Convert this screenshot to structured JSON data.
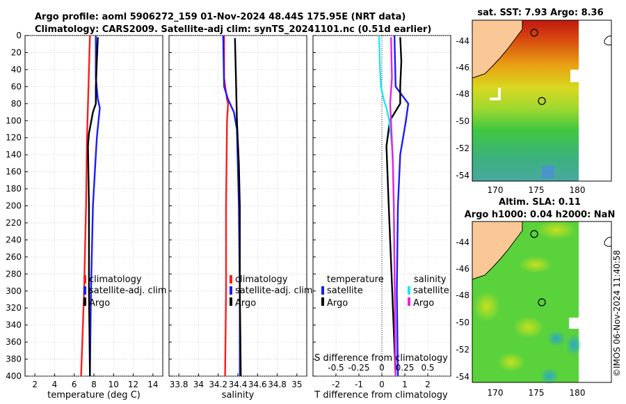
{
  "header": {
    "title_line1": "Argo profile: aoml 5906272_159 01-Nov-2024 48.44S 175.95E (NRT data)",
    "title_line2": "Climatology: CARS2009. Satellite-adj clim: synTS_20241101.nc (0.51d earlier)"
  },
  "maps": {
    "sst_title": "sat. SST: 7.93 Argo: 8.36",
    "sla_title1": "Altim. SLA: 0.11",
    "sla_title2": "Argo h1000: 0.04 h2000: NaN",
    "lat_ticks": [
      "-44",
      "-46",
      "-48",
      "-50",
      "-52",
      "-54"
    ],
    "lon_ticks": [
      "170",
      "175",
      "180"
    ],
    "land_color": "#f9c896",
    "float_lon": 175.95,
    "float_lat": -48.44
  },
  "watermark": "©IMOS 06-Nov-2024 11:40:58",
  "colors": {
    "climatology": "#ff1a1a",
    "satellite_clim": "#1a1aff",
    "argo": "#000000",
    "sat_T_diff": "#1a1aff",
    "sat_S_diff": "#22e5f0",
    "argo_S_diff": "#e622e6"
  },
  "chart_data": [
    {
      "type": "line",
      "id": "temperature",
      "xlabel": "temperature (deg C)",
      "ylabel": "",
      "xlim": [
        1,
        15
      ],
      "ylim": [
        400,
        0
      ],
      "xticks": [
        "2",
        "4",
        "6",
        "8",
        "10",
        "12",
        "14"
      ],
      "yticks": [
        "0",
        "20",
        "40",
        "60",
        "80",
        "100",
        "120",
        "140",
        "160",
        "180",
        "200",
        "220",
        "240",
        "260",
        "280",
        "300",
        "320",
        "340",
        "360",
        "380",
        "400"
      ],
      "grid": true,
      "legend": [
        "climatology",
        "satellite-adj. clim",
        "Argo"
      ],
      "series": [
        {
          "name": "climatology",
          "color": "#ff1a1a",
          "depth": [
            0,
            40,
            80,
            120,
            200,
            300,
            400
          ],
          "values": [
            7.6,
            7.5,
            7.4,
            7.3,
            7.2,
            7.0,
            6.7
          ]
        },
        {
          "name": "satellite-adj. clim",
          "color": "#1a1aff",
          "depth": [
            0,
            50,
            75,
            85,
            120,
            200,
            300,
            400
          ],
          "values": [
            8.2,
            8.2,
            8.4,
            8.6,
            8.3,
            7.9,
            7.7,
            7.6
          ]
        },
        {
          "name": "Argo",
          "color": "#000000",
          "depth": [
            2,
            30,
            60,
            80,
            90,
            115,
            130,
            200,
            300,
            400
          ],
          "values": [
            8.4,
            8.3,
            8.2,
            8.2,
            7.9,
            7.5,
            7.4,
            7.5,
            7.5,
            7.6
          ]
        }
      ]
    },
    {
      "type": "line",
      "id": "salinity",
      "xlabel": "salinity",
      "ylabel": "",
      "xlim": [
        33.7,
        35.1
      ],
      "ylim": [
        400,
        0
      ],
      "xticks": [
        "33.8",
        "34",
        "34.2",
        "34.4",
        "34.6",
        "34.8",
        "35"
      ],
      "grid": true,
      "legend": [
        "climatology",
        "satellite-adj. clim",
        "Argo"
      ],
      "series": [
        {
          "name": "climatology",
          "color": "#ff1a1a",
          "depth": [
            0,
            50,
            75,
            80,
            100,
            200,
            300,
            400
          ],
          "values": [
            34.26,
            34.26,
            34.29,
            34.3,
            34.29,
            34.28,
            34.28,
            34.27
          ]
        },
        {
          "name": "satellite-adj. clim",
          "color": "#1a1aff",
          "depth": [
            0,
            60,
            75,
            90,
            110,
            200,
            300,
            400
          ],
          "values": [
            34.25,
            34.26,
            34.3,
            34.36,
            34.39,
            34.41,
            34.42,
            34.42
          ]
        },
        {
          "name": "Argo",
          "color": "#000000",
          "depth": [
            3,
            50,
            100,
            150,
            200,
            300,
            400
          ],
          "values": [
            34.37,
            34.38,
            34.39,
            34.41,
            34.42,
            34.42,
            34.43
          ]
        }
      ]
    },
    {
      "type": "line",
      "id": "difference",
      "xlabel": "T difference from climatology",
      "top_axis_label": "S difference from climatology",
      "xlim": [
        -3,
        3
      ],
      "ylim": [
        400,
        0
      ],
      "xticks": [
        "-2",
        "-1",
        "0",
        "1",
        "2"
      ],
      "top_ticks": [
        "-0.5",
        "-0.25",
        "0",
        "0.25",
        "0.5"
      ],
      "grid": true,
      "legend_temperature_title": "temperature",
      "legend_salinity_title": "salinity",
      "legend_temperature": [
        "satellite",
        "Argo"
      ],
      "legend_salinity": [
        "satellite",
        "Argo"
      ],
      "series": [
        {
          "name": "T satellite",
          "color": "#1a1aff",
          "depth": [
            0,
            60,
            80,
            100,
            140,
            200,
            300,
            400
          ],
          "values": [
            0.55,
            0.6,
            1.15,
            1.05,
            0.8,
            0.7,
            0.65,
            0.7
          ]
        },
        {
          "name": "T Argo",
          "color": "#000000",
          "depth": [
            2,
            30,
            60,
            80,
            100,
            130,
            200,
            300,
            400
          ],
          "values": [
            0.8,
            0.85,
            0.8,
            0.8,
            0.35,
            0.2,
            0.3,
            0.45,
            0.6
          ]
        },
        {
          "name": "S satellite",
          "color": "#22e5f0",
          "depth": [
            0,
            40,
            60,
            75,
            85,
            100,
            140,
            200,
            300,
            400
          ],
          "values": [
            -0.03,
            -0.02,
            -0.01,
            0.02,
            0.05,
            0.08,
            0.12,
            0.13,
            0.14,
            0.15
          ]
        },
        {
          "name": "S Argo",
          "color": "#e622e6",
          "depth": [
            2,
            50,
            80,
            100,
            150,
            200,
            300,
            400
          ],
          "values": [
            0.1,
            0.11,
            0.09,
            0.1,
            0.12,
            0.13,
            0.14,
            0.15
          ]
        }
      ]
    }
  ]
}
